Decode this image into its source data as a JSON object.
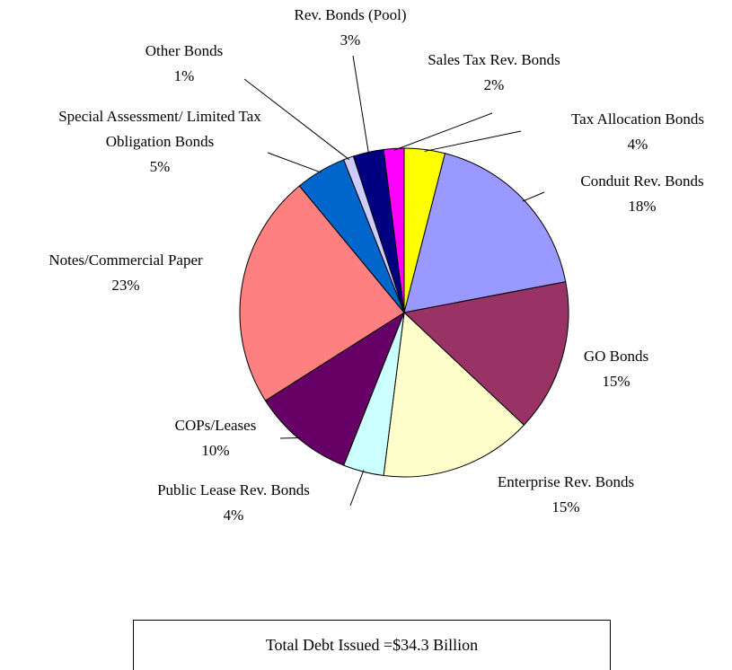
{
  "chart_data": {
    "type": "pie",
    "categories": [
      "Tax Allocation Bonds",
      "Conduit Rev. Bonds",
      "GO Bonds",
      "Enterprise Rev. Bonds",
      "Public Lease Rev. Bonds",
      "COPs/Leases",
      "Notes/Commercial Paper",
      "Special Assessment/ Limited Tax Obligation Bonds",
      "Other Bonds",
      "Rev. Bonds (Pool)",
      "Sales Tax Rev. Bonds"
    ],
    "values": [
      4,
      18,
      15,
      15,
      4,
      10,
      23,
      5,
      1,
      3,
      2
    ],
    "value_labels": [
      "4%",
      "18%",
      "15%",
      "15%",
      "4%",
      "10%",
      "23%",
      "5%",
      "1%",
      "3%",
      "2%"
    ],
    "colors": [
      "#ffff00",
      "#9999ff",
      "#993366",
      "#ffffcc",
      "#ccffff",
      "#660066",
      "#ff8080",
      "#0066cc",
      "#ccccff",
      "#000080",
      "#ff00ff"
    ],
    "annotation": "Total Debt Issued =$34.3 Billion"
  }
}
